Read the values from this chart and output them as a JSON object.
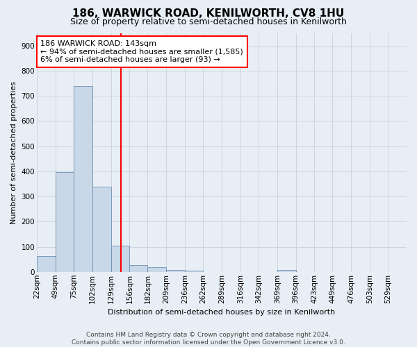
{
  "title1": "186, WARWICK ROAD, KENILWORTH, CV8 1HU",
  "title2": "Size of property relative to semi-detached houses in Kenilworth",
  "xlabel": "Distribution of semi-detached houses by size in Kenilworth",
  "ylabel": "Number of semi-detached properties",
  "footer1": "Contains HM Land Registry data © Crown copyright and database right 2024.",
  "footer2": "Contains public sector information licensed under the Open Government Licence v3.0.",
  "bins": [
    22,
    49,
    75,
    102,
    129,
    156,
    182,
    209,
    236,
    262,
    289,
    316,
    342,
    369,
    396,
    423,
    449,
    476,
    503,
    529,
    556
  ],
  "counts": [
    62,
    397,
    740,
    338,
    103,
    28,
    18,
    9,
    5,
    0,
    0,
    0,
    0,
    8,
    0,
    0,
    0,
    0,
    0,
    0
  ],
  "property_size": 143,
  "annotation_line1": "186 WARWICK ROAD: 143sqm",
  "annotation_line2": "← 94% of semi-detached houses are smaller (1,585)",
  "annotation_line3": "6% of semi-detached houses are larger (93) →",
  "bar_color": "#c8d8e8",
  "bar_edge_color": "#7090b0",
  "vline_color": "red",
  "annotation_box_color": "white",
  "annotation_box_edge": "red",
  "grid_color": "#ccd5de",
  "bg_color": "#e8eef5",
  "ylim": [
    0,
    950
  ],
  "yticks": [
    0,
    100,
    200,
    300,
    400,
    500,
    600,
    700,
    800,
    900
  ],
  "title1_fontsize": 11,
  "title2_fontsize": 9,
  "xlabel_fontsize": 8,
  "ylabel_fontsize": 8,
  "tick_fontsize": 7.5,
  "footer_fontsize": 6.5,
  "annot_fontsize": 8
}
